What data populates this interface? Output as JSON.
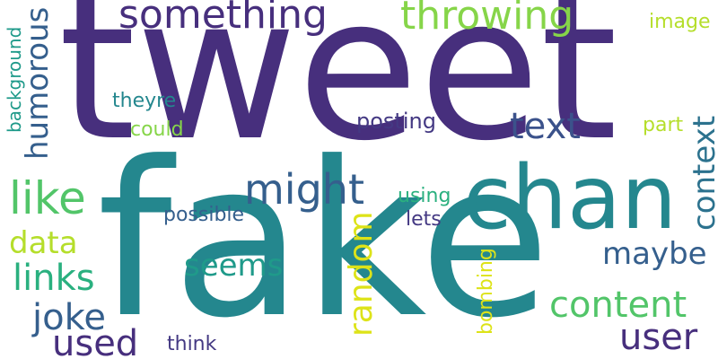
{
  "colors": {
    "background": "#ffffff",
    "purple_dark": "#472f7d",
    "purple": "#443983",
    "indigo": "#414487",
    "blue": "#3b528b",
    "blue_teal": "#355f8d",
    "teal_blue": "#2c728e",
    "teal": "#24878e",
    "teal_green": "#1f9a8a",
    "green": "#2ab07f",
    "green_light": "#52c569",
    "lime": "#86d549",
    "yellow_green": "#b5de2b",
    "yellow": "#dde318"
  },
  "words": {
    "tweet": "tweet",
    "fake": "fake",
    "chan": "chan",
    "something": "something",
    "throwing": "throwing",
    "image": "image",
    "background": "background",
    "humorous": "humorous",
    "theyre": "theyre",
    "could": "could",
    "posting": "posting",
    "text": "text",
    "part": "part",
    "context": "context",
    "like": "like",
    "might": "might",
    "using": "using",
    "possible": "possible",
    "lets": "lets",
    "data": "data",
    "maybe": "maybe",
    "links": "links",
    "seems": "seems",
    "random": "random",
    "bombing": "bombing",
    "content": "content",
    "joke": "joke",
    "user": "user",
    "used": "used",
    "think": "think"
  }
}
